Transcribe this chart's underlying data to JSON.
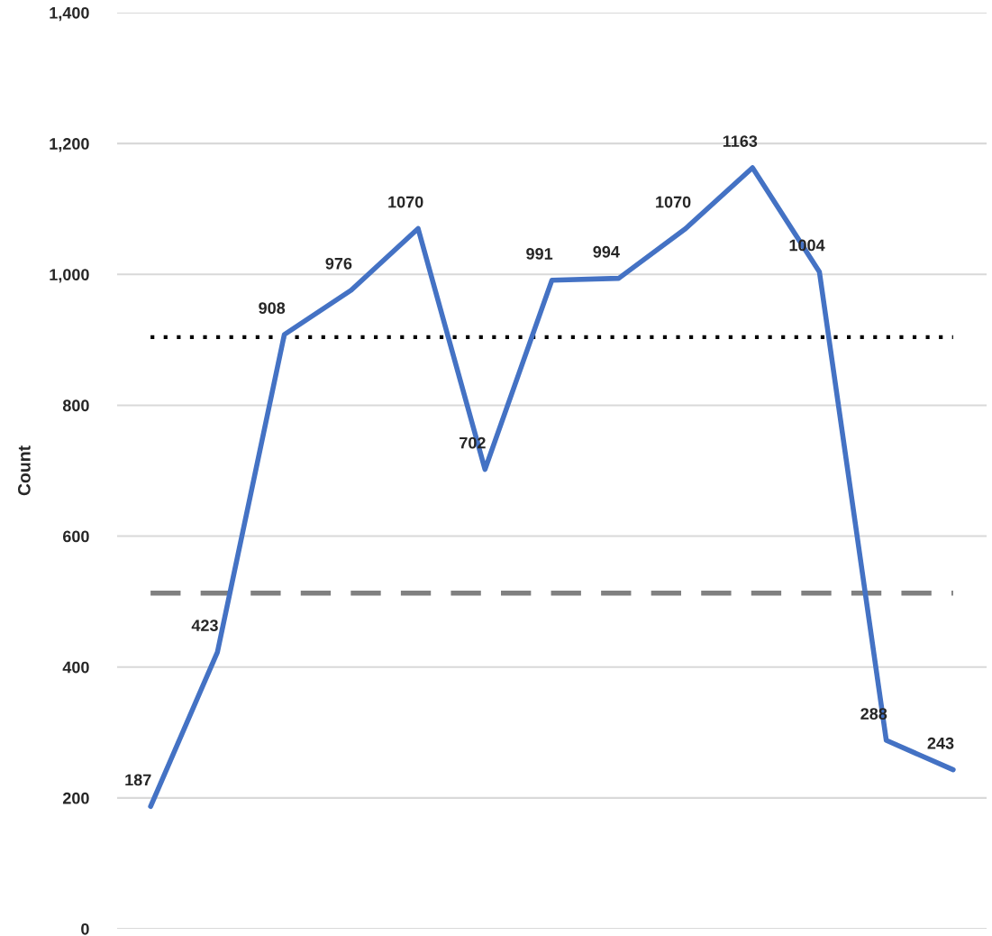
{
  "chart_data": {
    "type": "line",
    "ylabel": "Count",
    "categories": [
      null,
      null,
      null,
      null,
      null,
      null,
      null,
      null,
      null,
      null,
      null,
      null,
      null
    ],
    "series": [
      {
        "color": "#4472c4",
        "values": [
          187,
          423,
          908,
          976,
          1070,
          702,
          991,
          994,
          1070,
          1163,
          1004,
          288,
          243
        ]
      }
    ],
    "data_labels": true,
    "ylim": [
      0,
      1400
    ],
    "yticks": [
      0,
      {
        "value": 200,
        "label": "200"
      },
      {
        "value": 400,
        "label": "400"
      },
      {
        "value": 600,
        "label": "600"
      },
      {
        "value": 800,
        "label": "800"
      },
      {
        "value": 1000,
        "label": "1,000"
      },
      {
        "value": 1200,
        "label": "1,200"
      },
      {
        "value": 1400,
        "label": "1,400"
      }
    ],
    "grid": "y",
    "marker": "none",
    "line_style": "solid",
    "tick_labels": "y",
    "ref_lines": [
      {
        "axis": "y",
        "value": 904,
        "color": "#000000",
        "line_style": "dotted"
      },
      {
        "axis": "y",
        "value": 513,
        "color": "#808080",
        "line_style": "dashed"
      }
    ]
  }
}
